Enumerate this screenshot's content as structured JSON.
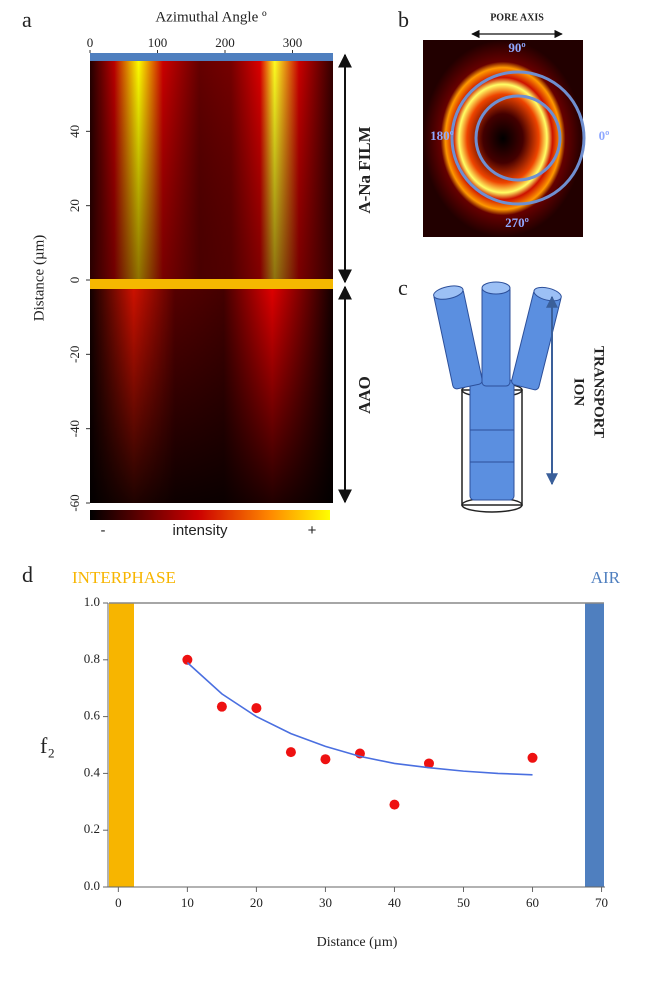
{
  "panel_labels": [
    "a",
    "b",
    "c",
    "d"
  ],
  "chart_data": [
    {
      "type": "heatmap",
      "xlabel": "Azimuthal Angle º",
      "ylabel": "Distance (µm)",
      "xlim": [
        0,
        360
      ],
      "xticks": [
        0,
        100,
        200,
        300
      ],
      "ylim": [
        -60,
        60
      ],
      "yticks": [
        40,
        20,
        0,
        -20,
        -40,
        -60
      ],
      "annotations": [
        "A-Na FILM",
        "AAO"
      ],
      "colorbar_labels": [
        "-",
        "intensity",
        "+"
      ]
    },
    {
      "type": "scatter",
      "ylabel": "f₂",
      "xlabel": "Distance (µm)",
      "xlim": [
        -1.5,
        70.5
      ],
      "xticks": [
        0,
        10,
        20,
        30,
        40,
        50,
        60,
        70
      ],
      "ylim": [
        0,
        1.0
      ],
      "yticks": [
        {
          "value": 0,
          "label": "0.0"
        },
        {
          "value": 0.2,
          "label": "0.2"
        },
        {
          "value": 0.4,
          "label": "0.4"
        },
        {
          "value": 0.6,
          "label": "0.6"
        },
        {
          "value": 0.8,
          "label": "0.8"
        },
        {
          "value": 1.0,
          "label": "1.0"
        }
      ],
      "annotations": [
        "INTERPHASE",
        "AIR"
      ],
      "series": [
        {
          "style": "markers",
          "color": "#ee1111",
          "x": [
            10,
            15,
            20,
            25,
            30,
            35,
            40,
            45,
            60
          ],
          "values": [
            0.8,
            0.635,
            0.63,
            0.475,
            0.45,
            0.47,
            0.29,
            0.435,
            0.455
          ]
        },
        {
          "style": "line",
          "color": "#4a6fe0",
          "x": [
            10,
            15,
            20,
            25,
            30,
            35,
            40,
            45,
            50,
            55,
            60
          ],
          "values": [
            0.79,
            0.68,
            0.6,
            0.54,
            0.495,
            0.46,
            0.435,
            0.42,
            0.408,
            0.4,
            0.395
          ]
        }
      ]
    }
  ],
  "diffraction": {
    "title": "PORE AXIS",
    "angles": [
      "90º",
      "180º",
      "0º",
      "270º"
    ]
  },
  "transport": {
    "lines": [
      "ION",
      "TRANSPORT"
    ]
  }
}
